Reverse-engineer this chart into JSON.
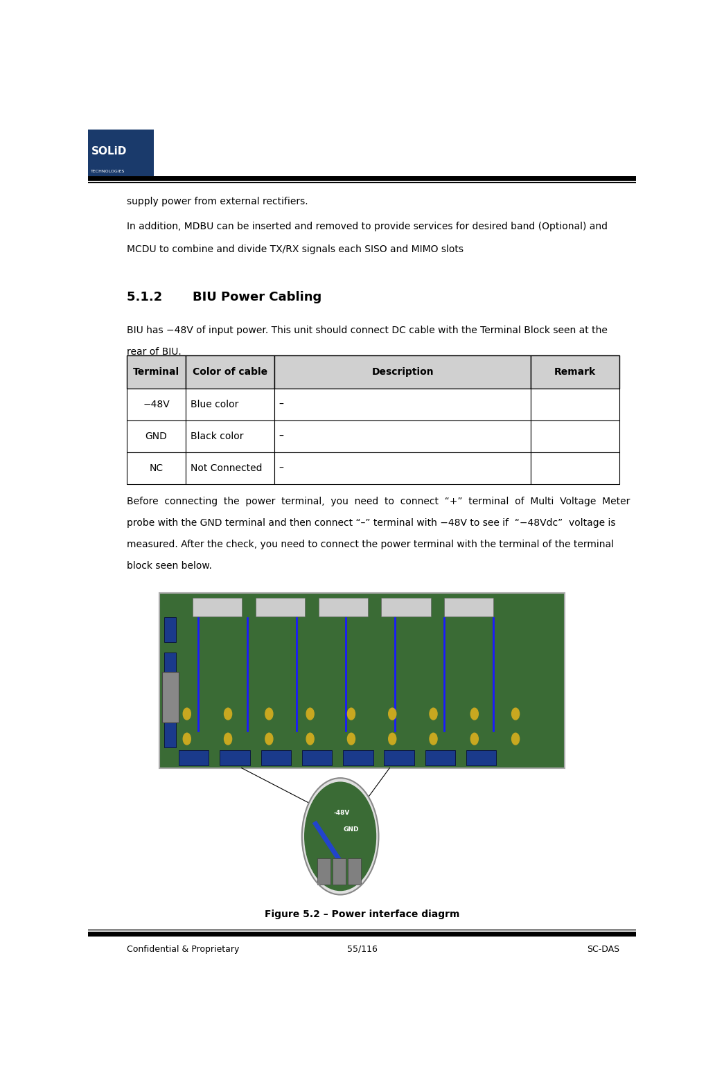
{
  "page_width": 10.2,
  "page_height": 15.62,
  "bg_color": "#ffffff",
  "header_logo_color": "#1a3a6b",
  "header_line_color": "#000000",
  "footer_line_color": "#000000",
  "footer_text_left": "Confidential & Proprietary",
  "footer_text_center": "55/116",
  "footer_text_right": "SC-DAS",
  "footer_font_size": 9,
  "body_font_size": 10,
  "section_title": "5.1.2       BIU Power Cabling",
  "section_title_font_size": 13,
  "para1": "supply power from external rectifiers.",
  "para2": "In addition, MDBU can be inserted and removed to provide services for desired band (Optional) and",
  "para3": "MCDU to combine and divide TX/RX signals each SISO and MIMO slots",
  "para4": "BIU has −48V of input power. This unit should connect DC cable with the Terminal Block seen at the",
  "para5": "rear of BIU.",
  "table_headers": [
    "Terminal",
    "Color of cable",
    "Description",
    "Remark"
  ],
  "table_rows": [
    [
      "−48V",
      "Blue color",
      "–",
      ""
    ],
    [
      "GND",
      "Black color",
      "–",
      ""
    ],
    [
      "NC",
      "Not Connected",
      "–",
      ""
    ]
  ],
  "table_header_bg": "#d0d0d0",
  "table_border_color": "#000000",
  "para6_lines": [
    "Before  connecting  the  power  terminal,  you  need  to  connect  “+”  terminal  of  Multi  Voltage  Meter",
    "probe with the GND terminal and then connect “–” terminal with −48V to see if  “−48Vdc”  voltage is",
    "measured. After the check, you need to connect the power terminal with the terminal of the terminal",
    "block seen below."
  ],
  "figure_caption": "Figure 5.2 – Power interface diagrm",
  "figure_caption_font_size": 10
}
